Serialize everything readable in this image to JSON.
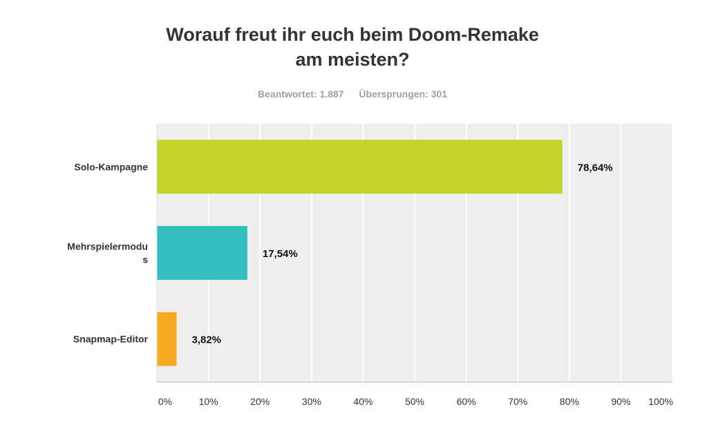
{
  "chart_data": {
    "type": "bar",
    "orientation": "horizontal",
    "title_lines": [
      "Worauf freut ihr euch beim Doom-Remake",
      "am meisten?"
    ],
    "subtitle": {
      "answered": "Beantwortet: 1.887",
      "skipped": "Übersprungen: 301"
    },
    "categories": [
      {
        "lines": [
          "Solo-Kampagne"
        ]
      },
      {
        "lines": [
          "Mehrspielermodu",
          "s"
        ]
      },
      {
        "lines": [
          "Snapmap-Editor"
        ]
      }
    ],
    "values": [
      78.64,
      17.54,
      3.82
    ],
    "value_labels": [
      "78,64%",
      "17,54%",
      "3,82%"
    ],
    "colors": [
      "#c5d42a",
      "#33bfbf",
      "#f5aa22"
    ],
    "xlim": [
      0,
      100
    ],
    "ticks": [
      0,
      10,
      20,
      30,
      40,
      50,
      60,
      70,
      80,
      90,
      100
    ],
    "tick_labels": [
      "0%",
      "10%",
      "20%",
      "30%",
      "40%",
      "50%",
      "60%",
      "70%",
      "80%",
      "90%",
      "100%"
    ],
    "grid": true,
    "plot_background": "#efefef",
    "grid_color": "#ffffff"
  }
}
